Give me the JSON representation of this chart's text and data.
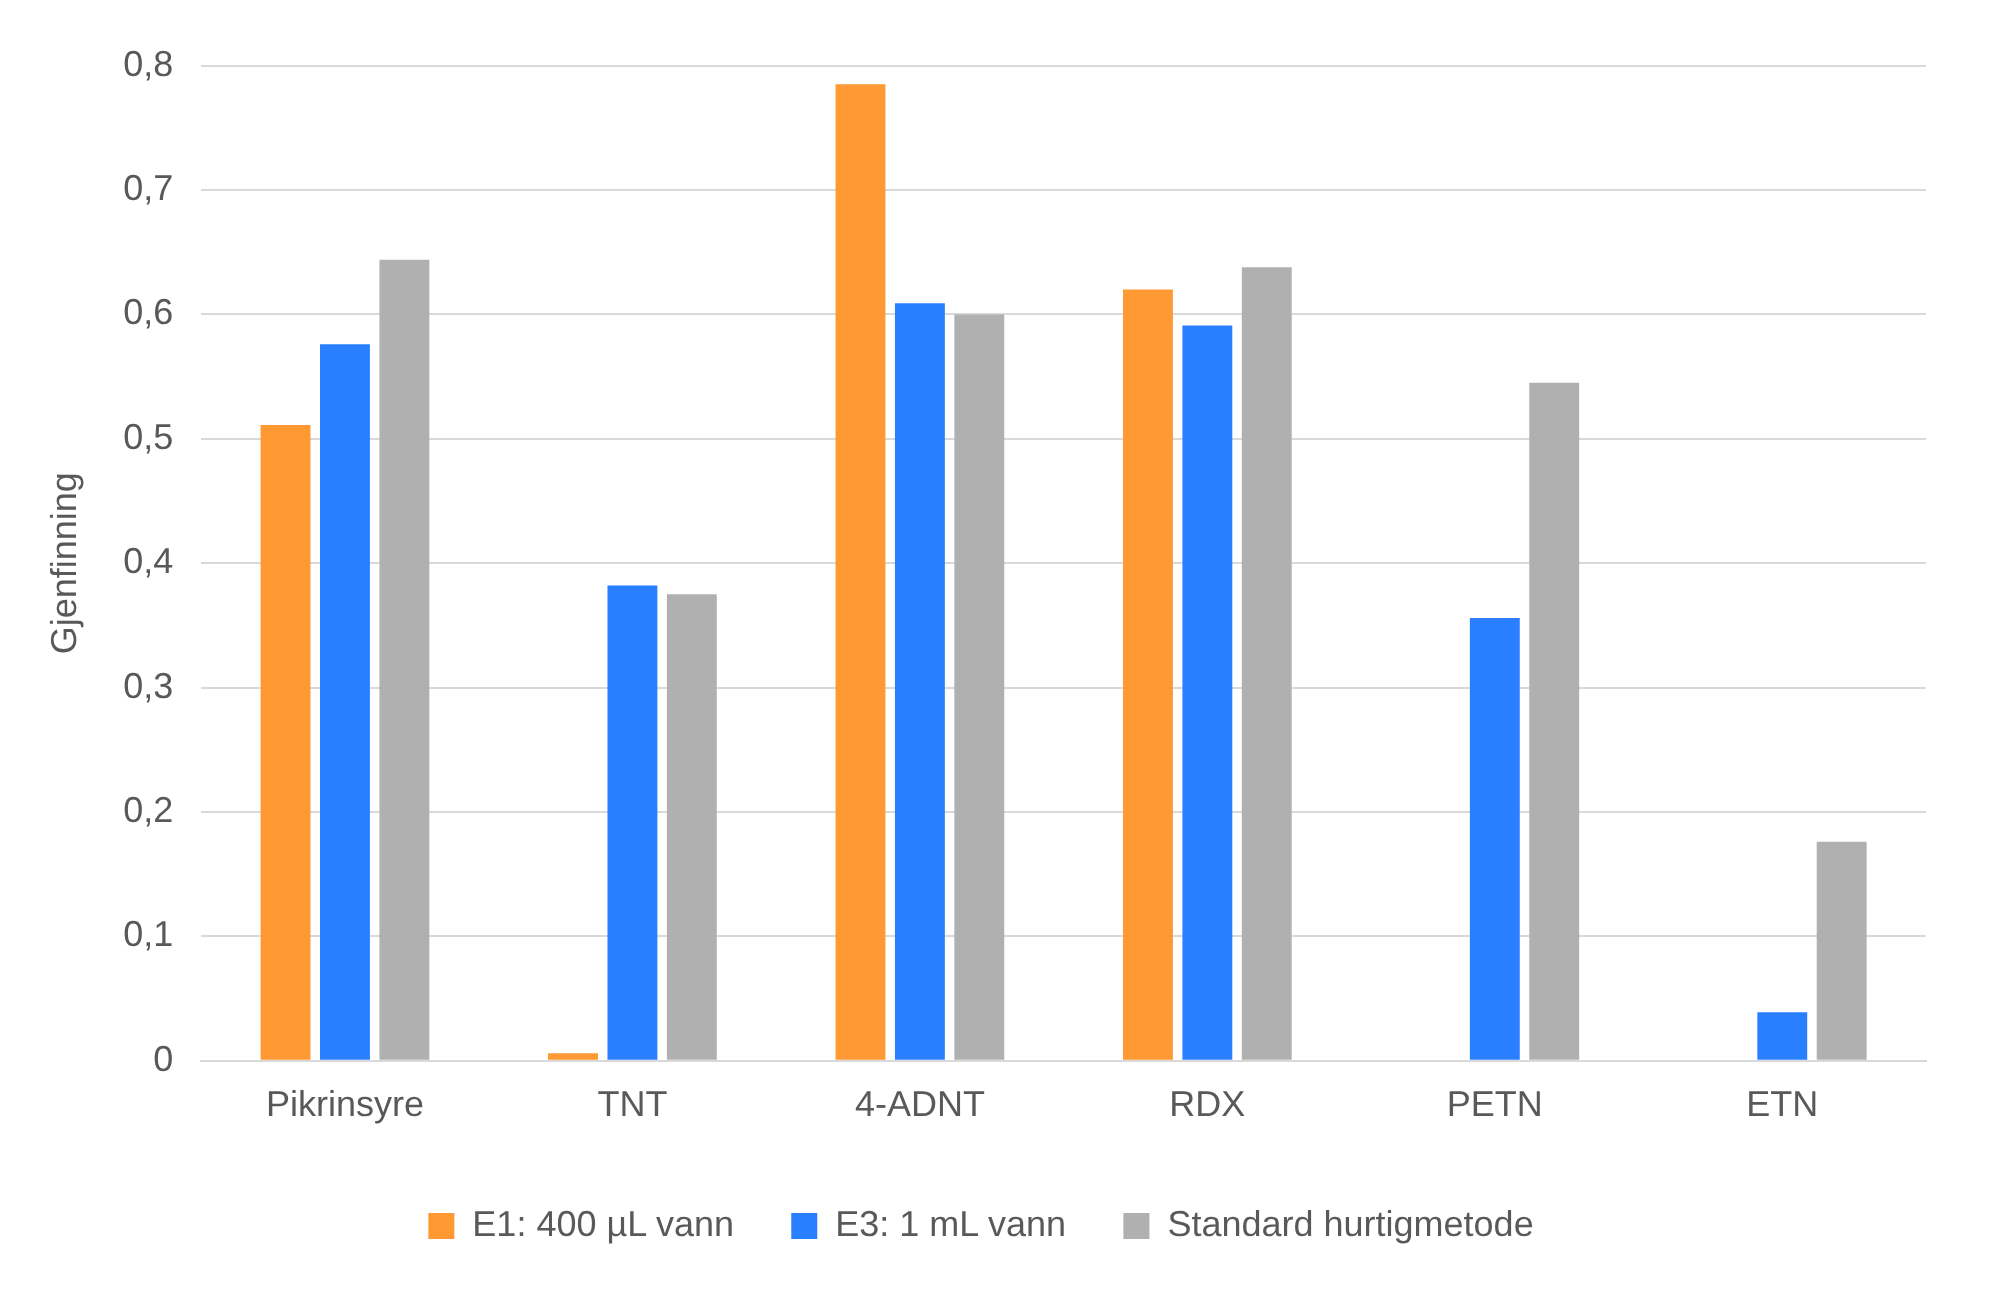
{
  "chart_data": {
    "type": "bar",
    "ylabel": "Gjenfinning",
    "categories": [
      "Pikrinsyre",
      "TNT",
      "4-ADNT",
      "RDX",
      "PETN",
      "ETN"
    ],
    "series": [
      {
        "name": "E1: 400 µL vann",
        "color": "#ff9933",
        "values": [
          0.511,
          0.006,
          0.785,
          0.62,
          null,
          null
        ]
      },
      {
        "name": "E3: 1 mL vann",
        "color": "#297fff",
        "values": [
          0.576,
          0.382,
          0.609,
          0.591,
          0.356,
          0.039
        ]
      },
      {
        "name": "Standard hurtigmetode",
        "color": "#b0b0b0",
        "values": [
          0.644,
          0.375,
          0.6,
          0.638,
          0.545,
          0.176
        ]
      }
    ],
    "ylim": [
      0,
      0.8
    ],
    "yticks": [
      0,
      {
        "value": 0.1,
        "label": "0,1"
      },
      {
        "value": 0.2,
        "label": "0,2"
      },
      {
        "value": 0.3,
        "label": "0,3"
      },
      {
        "value": 0.4,
        "label": "0,4"
      },
      {
        "value": 0.5,
        "label": "0,5"
      },
      {
        "value": 0.6,
        "label": "0,6"
      },
      {
        "value": 0.7,
        "label": "0,7"
      },
      {
        "value": 0.8,
        "label": "0,8"
      }
    ],
    "grid": "y",
    "legend": "bottom"
  }
}
